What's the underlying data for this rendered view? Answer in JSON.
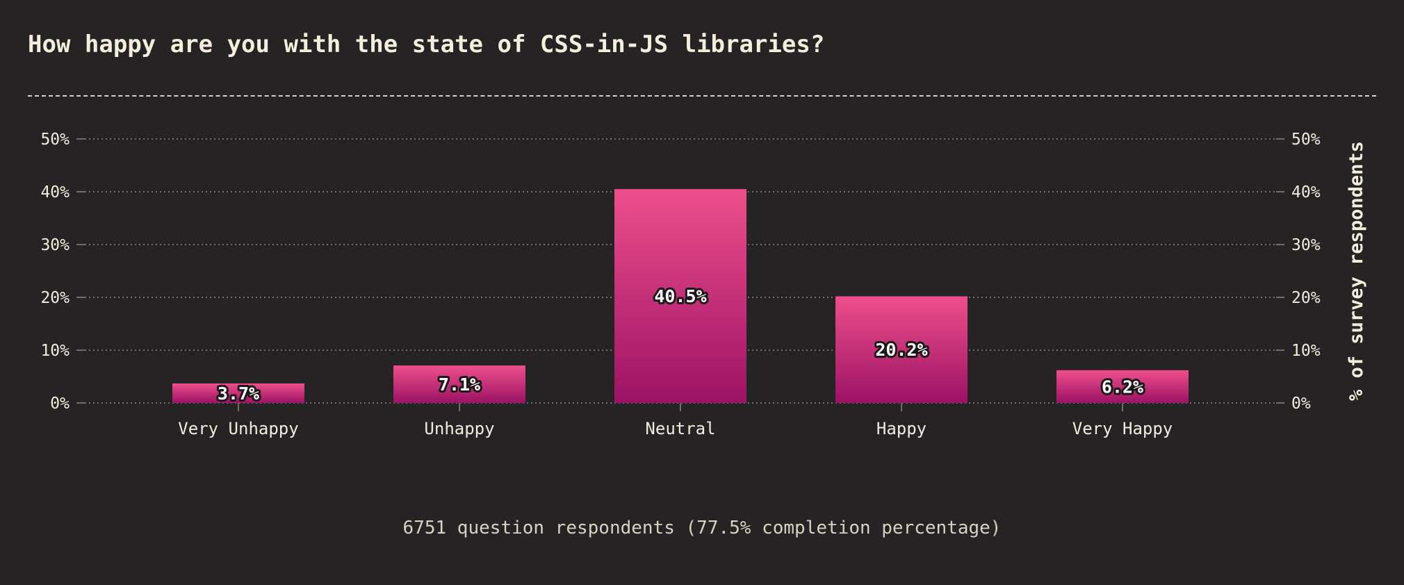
{
  "chart_data": {
    "type": "bar",
    "title": "How happy are you with the state of CSS-in-JS libraries?",
    "categories": [
      "Very Unhappy",
      "Unhappy",
      "Neutral",
      "Happy",
      "Very Happy"
    ],
    "values": [
      3.7,
      7.1,
      40.5,
      20.2,
      6.2
    ],
    "value_labels": [
      "3.7%",
      "7.1%",
      "40.5%",
      "20.2%",
      "6.2%"
    ],
    "ylabel": "% of survey respondents",
    "ylim": [
      0,
      50
    ],
    "yticks": [
      0,
      10,
      20,
      30,
      40,
      50
    ],
    "ytick_labels": [
      "0%",
      "10%",
      "20%",
      "30%",
      "40%",
      "50%"
    ],
    "grid": true,
    "legend": "none",
    "colors": {
      "bar_top": "#ee4f8b",
      "bar_bottom": "#9c1265",
      "background": "#262324",
      "text": "#f3ecde",
      "grid": "#8a8580"
    }
  },
  "footer": {
    "note": "6751 question respondents (77.5% completion percentage)"
  }
}
